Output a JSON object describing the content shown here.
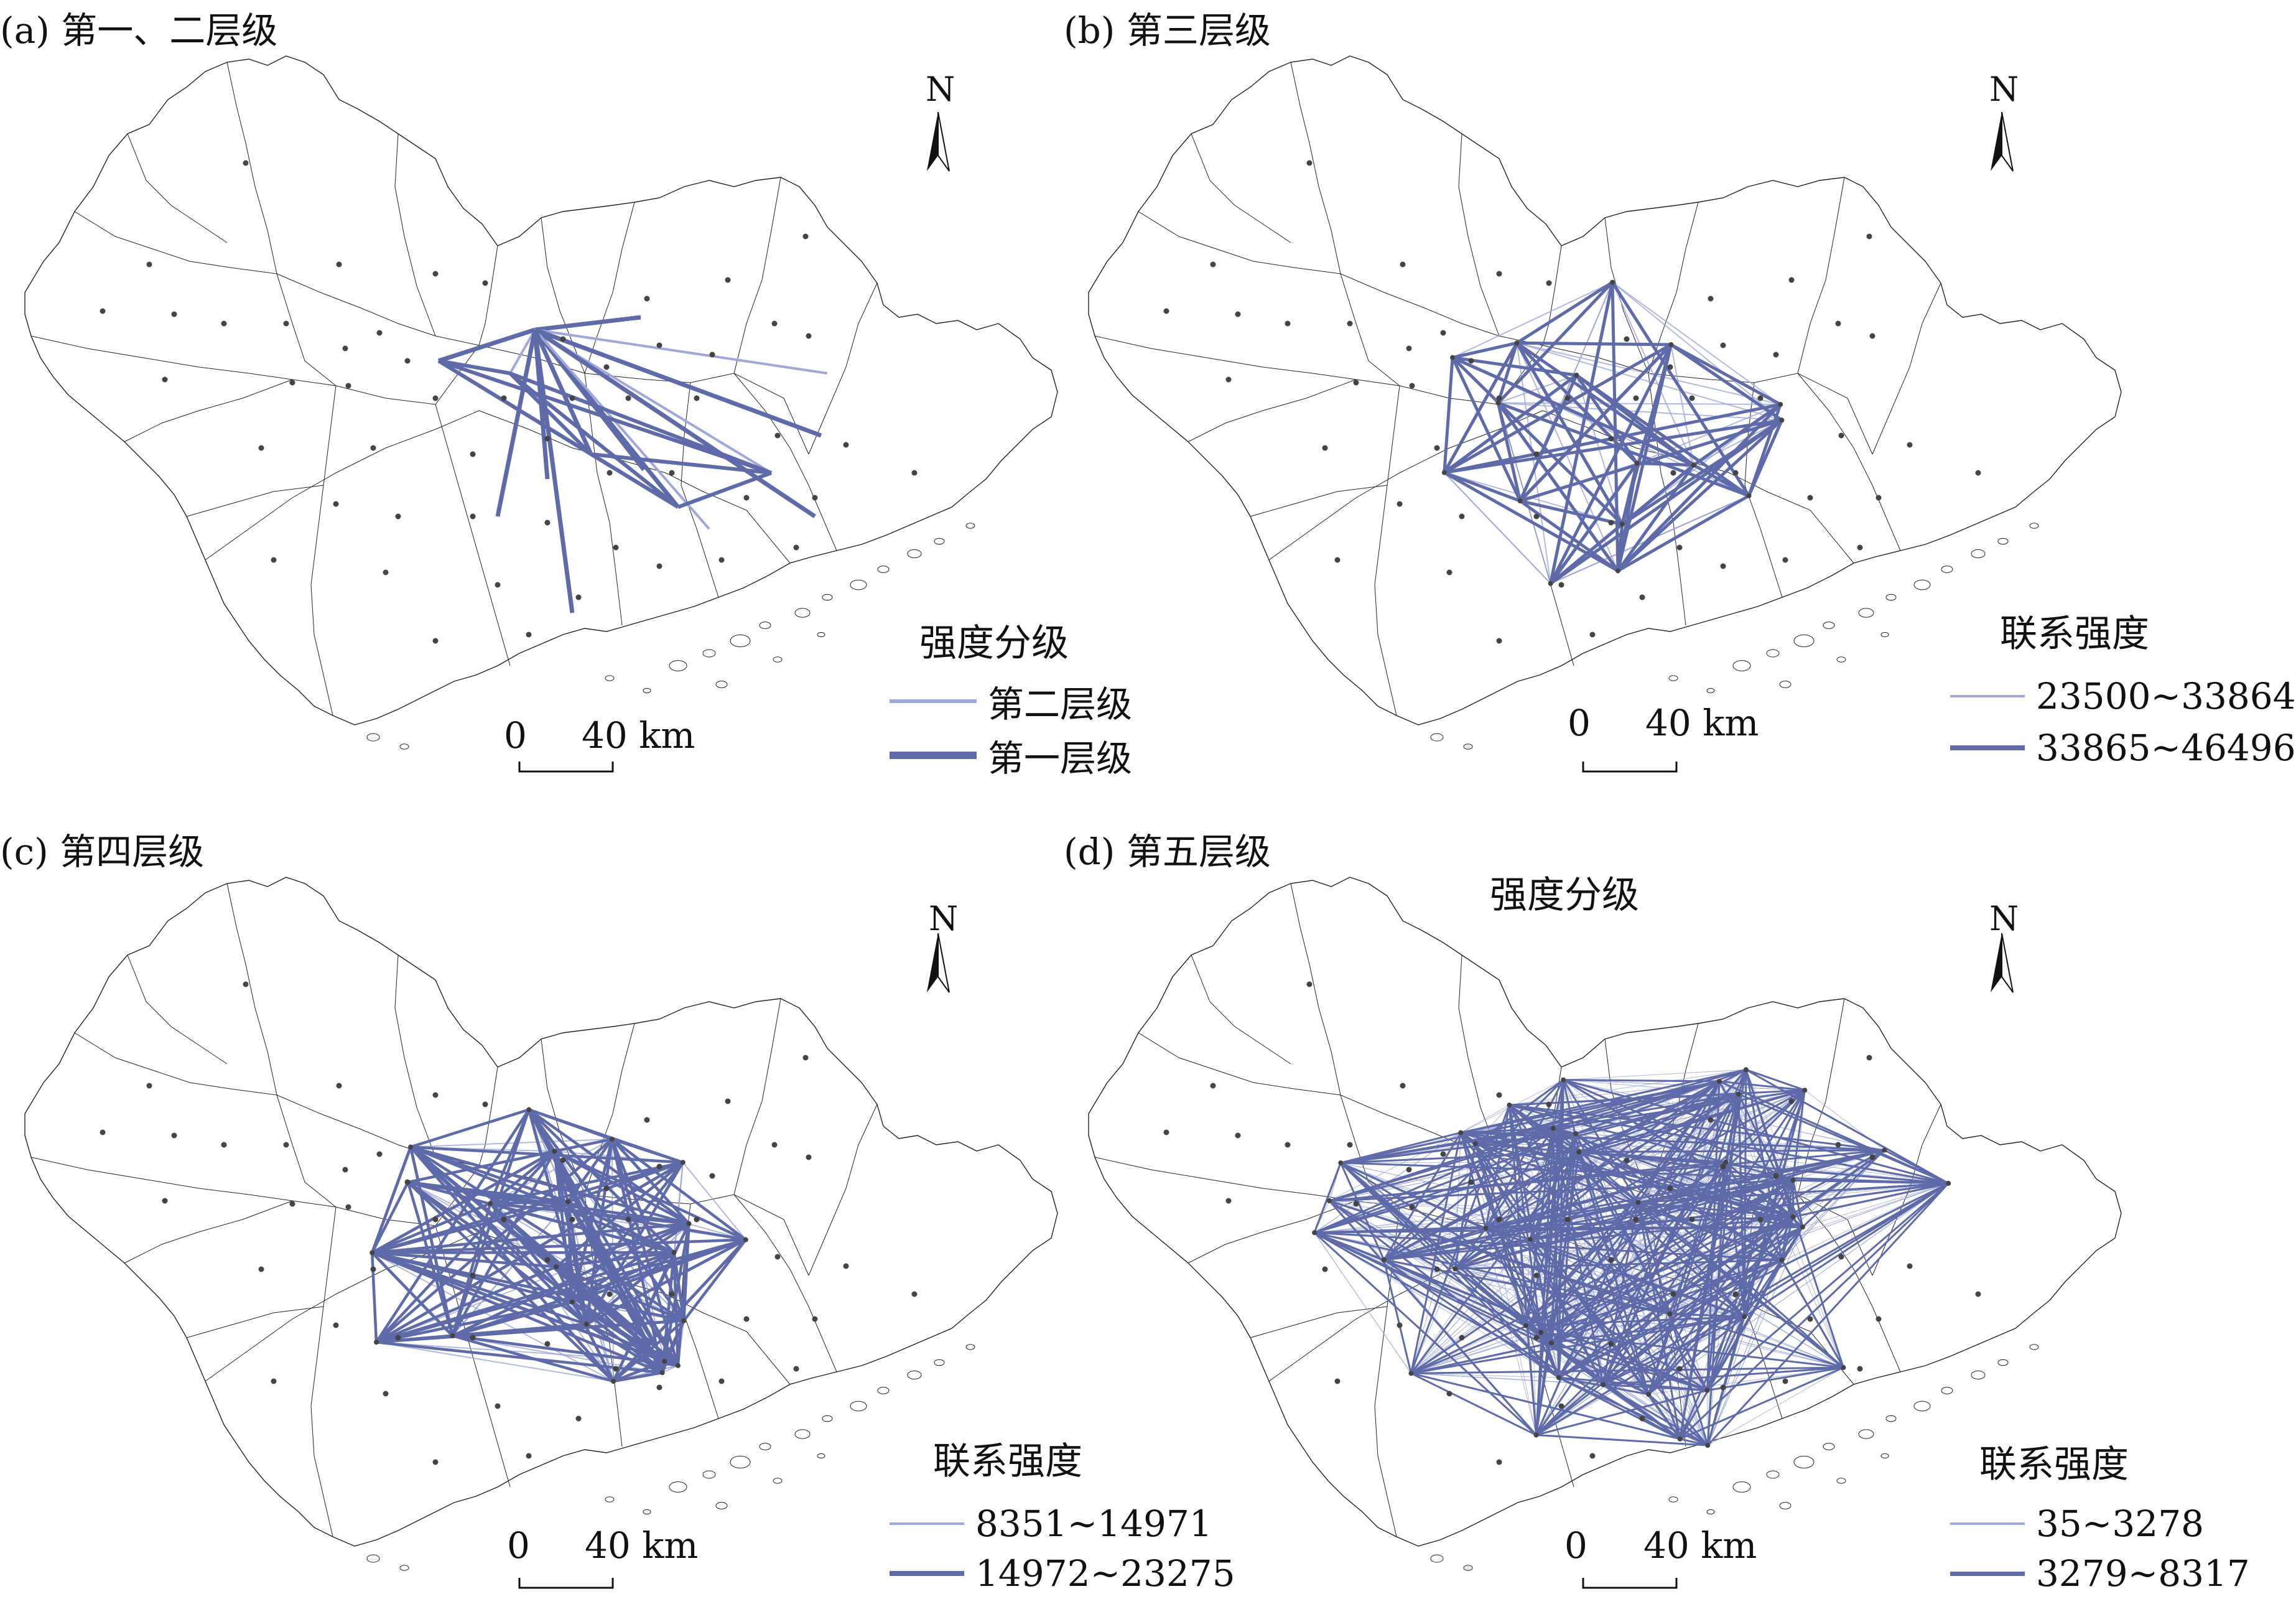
{
  "colors": {
    "boundary": "#222222",
    "light_line": "#9fa8d8",
    "strong_line": "#5f6aa8",
    "node": "#444444"
  },
  "panels": [
    {
      "id": "a",
      "title": "(a) 第一、二层级",
      "legend_title": "强度分级",
      "legend": [
        {
          "label": "第二层级",
          "weight": "thin"
        },
        {
          "label": "第一层级",
          "weight": "thick"
        }
      ],
      "scale": {
        "zero": "0",
        "label": "40 km"
      },
      "north": "N",
      "network_density": "low"
    },
    {
      "id": "b",
      "title": "(b) 第三层级",
      "legend_title": "联系强度",
      "legend": [
        {
          "label": "23500~33864",
          "weight": "thin"
        },
        {
          "label": "33865~46496",
          "weight": "thick"
        }
      ],
      "scale": {
        "zero": "0",
        "label": "40 km"
      },
      "north": "N",
      "network_density": "medium"
    },
    {
      "id": "c",
      "title": "(c) 第四层级",
      "legend_title": "联系强度",
      "legend": [
        {
          "label": "8351~14971",
          "weight": "thin"
        },
        {
          "label": "14972~23275",
          "weight": "thick"
        }
      ],
      "scale": {
        "zero": "0",
        "label": "40 km"
      },
      "north": "N",
      "network_density": "high"
    },
    {
      "id": "d",
      "title": "(d) 第五层级",
      "extra_title": "强度分级",
      "legend_title": "联系强度",
      "legend": [
        {
          "label": "35~3278",
          "weight": "thin"
        },
        {
          "label": "3279~8317",
          "weight": "thick"
        }
      ],
      "scale": {
        "zero": "0",
        "label": "40 km"
      },
      "north": "N",
      "network_density": "very-high"
    }
  ]
}
